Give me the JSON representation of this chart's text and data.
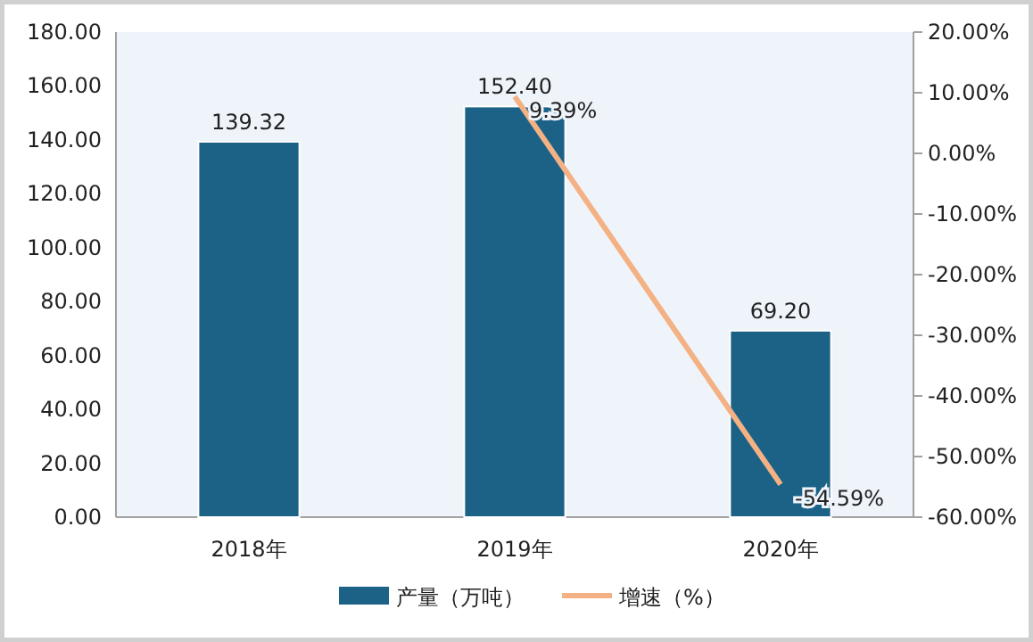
{
  "chart_data": {
    "type": "bar",
    "categories": [
      "2018年",
      "2019年",
      "2020年"
    ],
    "series": [
      {
        "name": "产量（万吨）",
        "color": "#1b6286",
        "values": [
          139.32,
          152.4,
          69.2
        ],
        "value_labels": [
          "139.32",
          "152.40",
          "69.20"
        ]
      },
      {
        "name": "增速（%）",
        "type": "line",
        "axis": "y2",
        "color": "#f4b183",
        "values": [
          null,
          9.39,
          -54.59
        ],
        "value_labels": [
          null,
          "9.39%",
          "-54.59%"
        ]
      }
    ],
    "ylim": [
      0,
      180
    ],
    "yticks": [
      {
        "value": 0,
        "label": "0.00"
      },
      {
        "value": 20,
        "label": "20.00"
      },
      {
        "value": 40,
        "label": "40.00"
      },
      {
        "value": 60,
        "label": "60.00"
      },
      {
        "value": 80,
        "label": "80.00"
      },
      {
        "value": 100,
        "label": "100.00"
      },
      {
        "value": 120,
        "label": "120.00"
      },
      {
        "value": 140,
        "label": "140.00"
      },
      {
        "value": 160,
        "label": "160.00"
      },
      {
        "value": 180,
        "label": "180.00"
      }
    ],
    "y2lim": [
      -60,
      20
    ],
    "y2ticks": [
      {
        "value": -60,
        "label": "-60.00%"
      },
      {
        "value": -50,
        "label": "-50.00%"
      },
      {
        "value": -40,
        "label": "-40.00%"
      },
      {
        "value": -30,
        "label": "-30.00%"
      },
      {
        "value": -20,
        "label": "-20.00%"
      },
      {
        "value": -10,
        "label": "-10.00%"
      },
      {
        "value": 0,
        "label": "0.00%"
      },
      {
        "value": 10,
        "label": "10.00%"
      },
      {
        "value": 20,
        "label": "20.00%"
      }
    ],
    "legend": "bottom",
    "marker": "none"
  }
}
